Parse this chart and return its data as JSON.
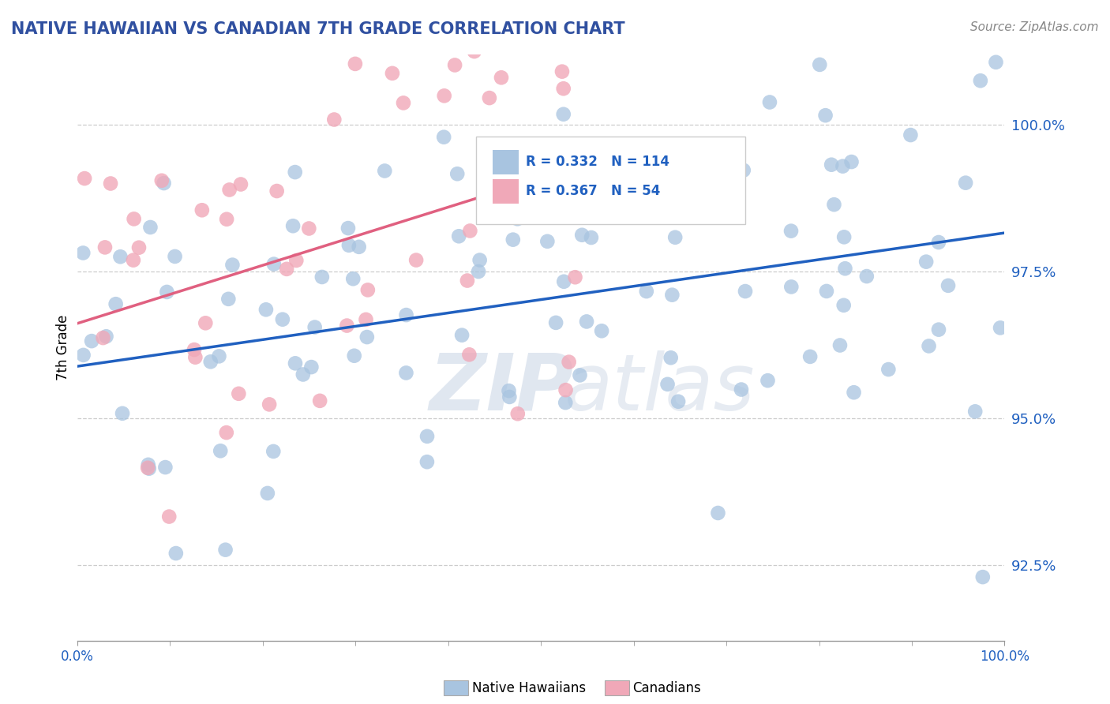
{
  "title": "NATIVE HAWAIIAN VS CANADIAN 7TH GRADE CORRELATION CHART",
  "source": "Source: ZipAtlas.com",
  "ylabel": "7th Grade",
  "ytick_labels": [
    "92.5%",
    "95.0%",
    "97.5%",
    "100.0%"
  ],
  "ytick_values": [
    92.5,
    95.0,
    97.5,
    100.0
  ],
  "xrange": [
    0,
    100
  ],
  "yrange": [
    91.2,
    101.2
  ],
  "blue_r": 0.332,
  "blue_n": 114,
  "pink_r": 0.367,
  "pink_n": 54,
  "blue_color": "#a8c4e0",
  "pink_color": "#f0a8b8",
  "blue_line_color": "#2060c0",
  "pink_line_color": "#e06080",
  "legend_blue_label": "Native Hawaiians",
  "legend_pink_label": "Canadians",
  "watermark_zip": "ZIP",
  "watermark_atlas": "atlas",
  "title_color": "#3050a0",
  "stats_text_color": "#2060c0",
  "seed": 99
}
